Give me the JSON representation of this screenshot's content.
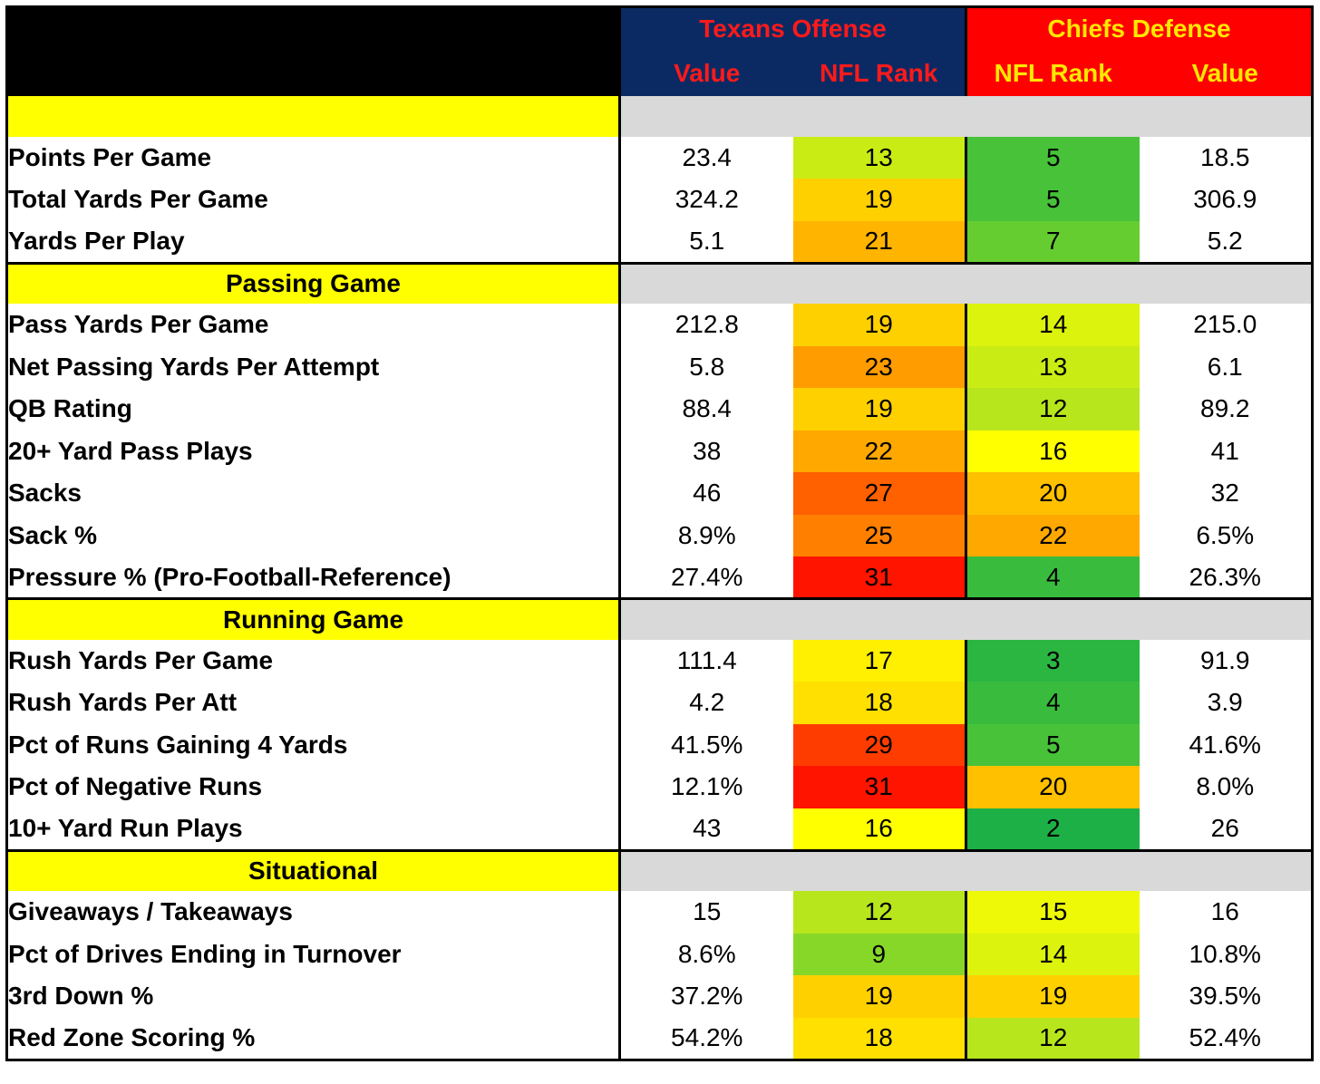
{
  "header": {
    "left_team": "Texans Offense",
    "right_team": "Chiefs Defense",
    "col_value": "Value",
    "col_rank": "NFL Rank",
    "colors": {
      "navy": "#0b2a64",
      "red": "#ff0000",
      "section_yellow": "#ffff00",
      "section_gray": "#d9d9d9"
    }
  },
  "chart_data": {
    "type": "table",
    "columns": [
      "",
      "Texans Offense Value",
      "Texans Offense NFL Rank",
      "Chiefs Defense NFL Rank",
      "Chiefs Defense Value"
    ],
    "sections": [
      {
        "title": "",
        "rows": [
          {
            "label": "Points Per Game",
            "off_value": "23.4",
            "off_rank": "13",
            "def_rank": "5",
            "def_value": "18.5"
          },
          {
            "label": "Total Yards Per Game",
            "off_value": "324.2",
            "off_rank": "19",
            "def_rank": "5",
            "def_value": "306.9"
          },
          {
            "label": "Yards Per Play",
            "off_value": "5.1",
            "off_rank": "21",
            "def_rank": "7",
            "def_value": "5.2"
          }
        ]
      },
      {
        "title": "Passing Game",
        "rows": [
          {
            "label": "Pass Yards Per Game",
            "off_value": "212.8",
            "off_rank": "19",
            "def_rank": "14",
            "def_value": "215.0"
          },
          {
            "label": "Net Passing Yards Per Attempt",
            "off_value": "5.8",
            "off_rank": "23",
            "def_rank": "13",
            "def_value": "6.1"
          },
          {
            "label": "QB Rating",
            "off_value": "88.4",
            "off_rank": "19",
            "def_rank": "12",
            "def_value": "89.2"
          },
          {
            "label": "20+ Yard Pass Plays",
            "off_value": "38",
            "off_rank": "22",
            "def_rank": "16",
            "def_value": "41"
          },
          {
            "label": "Sacks",
            "off_value": "46",
            "off_rank": "27",
            "def_rank": "20",
            "def_value": "32"
          },
          {
            "label": "Sack %",
            "off_value": "8.9%",
            "off_rank": "25",
            "def_rank": "22",
            "def_value": "6.5%"
          },
          {
            "label": "Pressure % (Pro-Football-Reference)",
            "off_value": "27.4%",
            "off_rank": "31",
            "def_rank": "4",
            "def_value": "26.3%"
          }
        ]
      },
      {
        "title": "Running Game",
        "rows": [
          {
            "label": "Rush Yards Per Game",
            "off_value": "111.4",
            "off_rank": "17",
            "def_rank": "3",
            "def_value": "91.9"
          },
          {
            "label": "Rush Yards Per Att",
            "off_value": "4.2",
            "off_rank": "18",
            "def_rank": "4",
            "def_value": "3.9"
          },
          {
            "label": "Pct of Runs Gaining 4 Yards",
            "off_value": "41.5%",
            "off_rank": "29",
            "def_rank": "5",
            "def_value": "41.6%"
          },
          {
            "label": "Pct of Negative Runs",
            "off_value": "12.1%",
            "off_rank": "31",
            "def_rank": "20",
            "def_value": "8.0%"
          },
          {
            "label": "10+ Yard Run Plays",
            "off_value": "43",
            "off_rank": "16",
            "def_rank": "2",
            "def_value": "26"
          }
        ]
      },
      {
        "title": "Situational",
        "rows": [
          {
            "label": "Giveaways / Takeaways",
            "off_value": "15",
            "off_rank": "12",
            "def_rank": "15",
            "def_value": "16"
          },
          {
            "label": "Pct of Drives Ending in Turnover",
            "off_value": "8.6%",
            "off_rank": "9",
            "def_rank": "14",
            "def_value": "10.8%"
          },
          {
            "label": "3rd Down %",
            "off_value": "37.2%",
            "off_rank": "19",
            "def_rank": "19",
            "def_value": "39.5%"
          },
          {
            "label": "Red Zone Scoring %",
            "off_value": "54.2%",
            "off_rank": "18",
            "def_rank": "12",
            "def_value": "52.4%"
          }
        ]
      }
    ]
  }
}
